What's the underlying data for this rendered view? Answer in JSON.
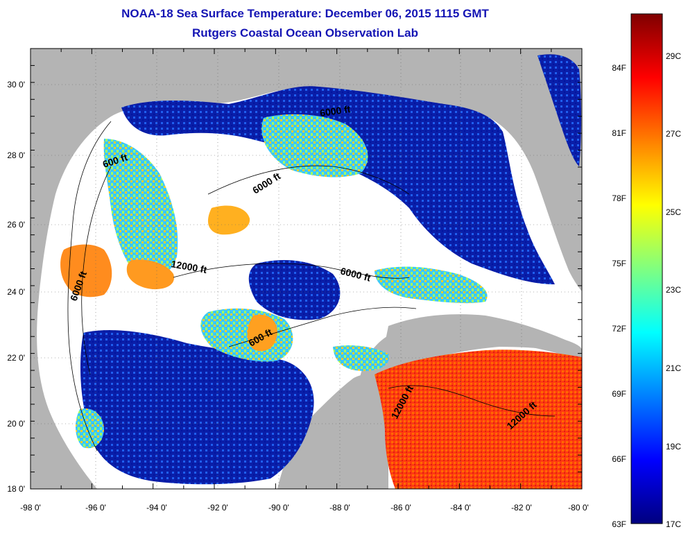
{
  "header": {
    "title": "NOAA-18 Sea Surface Temperature:  December 06, 2015 1115 GMT",
    "subtitle": "Rutgers Coastal Ocean Observation Lab"
  },
  "axes": {
    "lon_ticks": [
      "-98 0'",
      "-96 0'",
      "-94 0'",
      "-92 0'",
      "-90 0'",
      "-88 0'",
      "-86 0'",
      "-84 0'",
      "-82 0'",
      "-80 0'"
    ],
    "lat_ticks": [
      "30 0'",
      "28 0'",
      "26 0'",
      "24 0'",
      "22 0'",
      "20 0'",
      "18 0'"
    ]
  },
  "contours": [
    {
      "label": "600 ft"
    },
    {
      "label": "600 ft"
    },
    {
      "label": "6000 ft"
    },
    {
      "label": "6000 ft"
    },
    {
      "label": "6000 ft"
    },
    {
      "label": "12000 ft"
    },
    {
      "label": "12000 ft"
    },
    {
      "label": "12000 ft"
    },
    {
      "label": "6000 ft"
    }
  ],
  "colorbar": {
    "fahrenheit": [
      "84F",
      "81F",
      "78F",
      "75F",
      "72F",
      "69F",
      "66F",
      "63F"
    ],
    "celsius": [
      "29C",
      "27C",
      "25C",
      "23C",
      "21C",
      "19C",
      "17C"
    ],
    "colors": [
      "#7f0000",
      "#ff0000",
      "#ff8000",
      "#ffff00",
      "#80ff80",
      "#00ffff",
      "#0080ff",
      "#0000ff",
      "#00007f"
    ]
  }
}
